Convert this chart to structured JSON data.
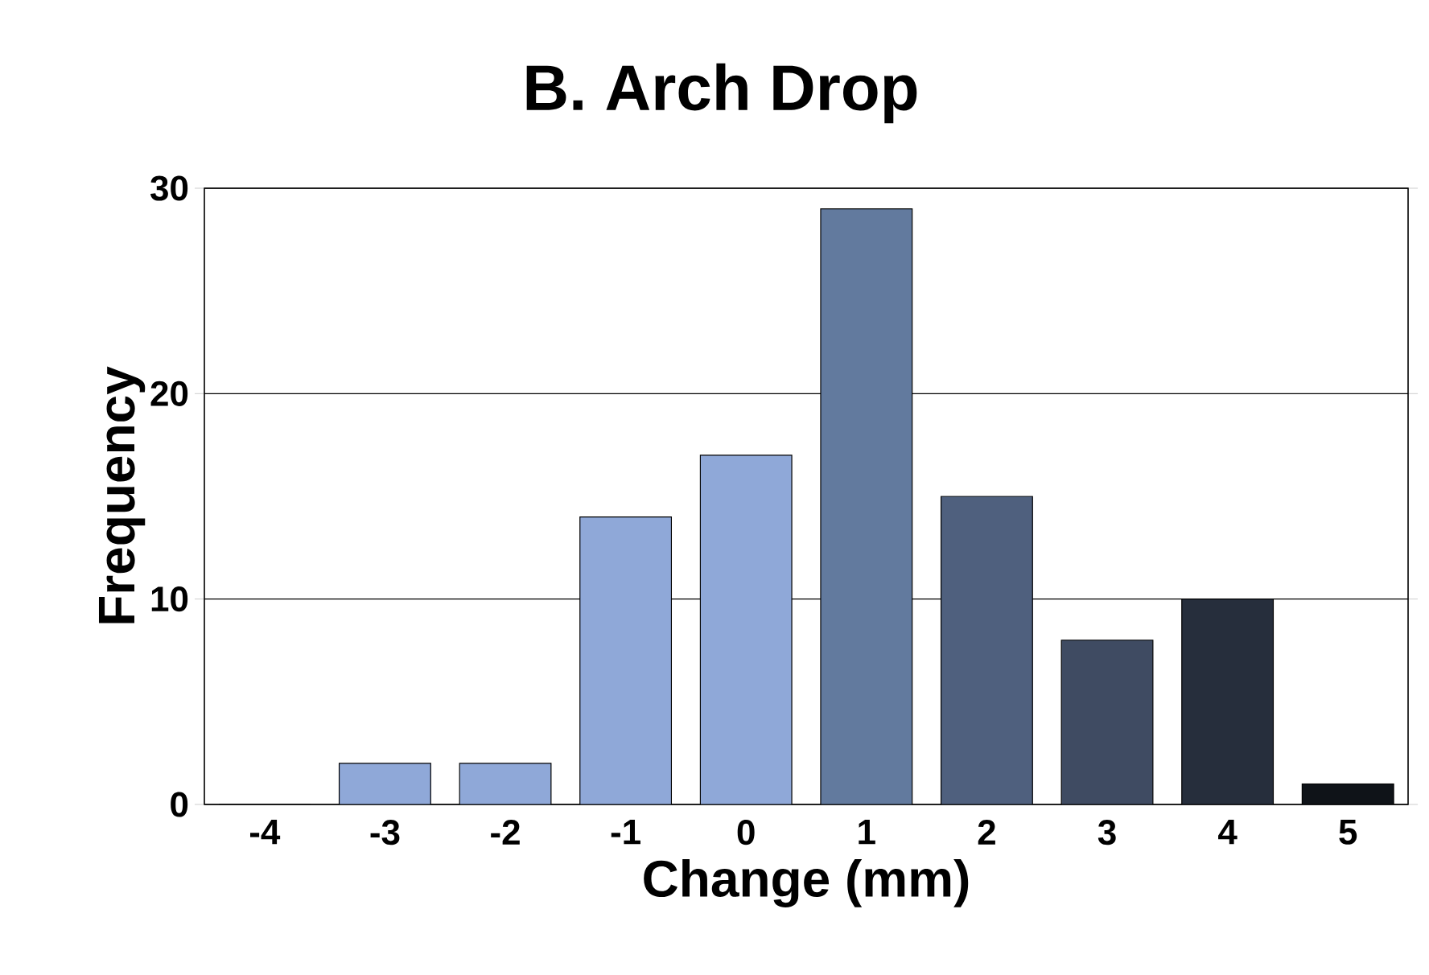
{
  "chart_data": {
    "type": "bar",
    "title": "B.  Arch Drop",
    "xlabel": "Change (mm)",
    "ylabel": "Frequency",
    "categories": [
      "-4",
      "-3",
      "-2",
      "-1",
      "0",
      "1",
      "2",
      "3",
      "4",
      "5"
    ],
    "values": [
      0,
      2,
      2,
      14,
      17,
      29,
      15,
      8,
      10,
      1
    ],
    "colors": [
      "#8fa8d8",
      "#8fa8d8",
      "#8fa8d8",
      "#8fa8d8",
      "#8fa8d8",
      "#627a9e",
      "#4f607e",
      "#3f4b62",
      "#262e3c",
      "#0f1318"
    ],
    "ylim": [
      0,
      30
    ],
    "yticks": [
      0,
      10,
      20,
      30
    ],
    "grid": "y"
  }
}
